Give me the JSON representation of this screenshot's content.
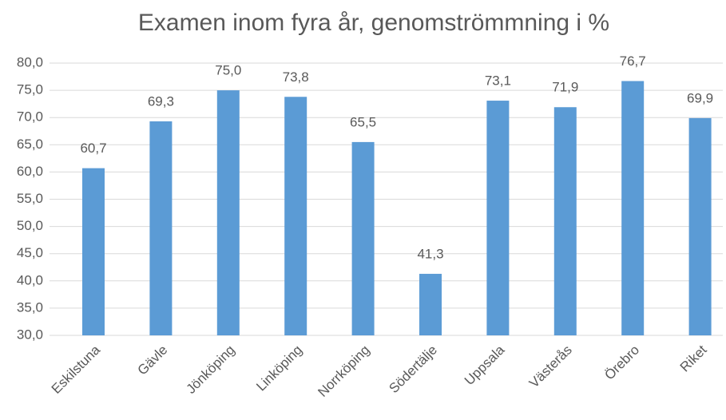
{
  "chart_data": {
    "type": "bar",
    "title": "Examen inom fyra år, genomströmmning i %",
    "categories": [
      "Eskilstuna",
      "Gävle",
      "Jönköping",
      "Linköping",
      "Norrköping",
      "Södertälje",
      "Uppsala",
      "Västerås",
      "Örebro",
      "Riket"
    ],
    "values": [
      60.7,
      69.3,
      75.0,
      73.8,
      65.5,
      41.3,
      73.1,
      71.9,
      76.7,
      69.9
    ],
    "value_labels": [
      "60,7",
      "69,3",
      "75,0",
      "73,8",
      "65,5",
      "41,3",
      "73,1",
      "71,9",
      "76,7",
      "69,9"
    ],
    "color": "#5b9bd5",
    "ylim": [
      30,
      80
    ],
    "yticks": [
      {
        "value": 30,
        "label": "30,0"
      },
      {
        "value": 35,
        "label": "35,0"
      },
      {
        "value": 40,
        "label": "40,0"
      },
      {
        "value": 45,
        "label": "45,0"
      },
      {
        "value": 50,
        "label": "50,0"
      },
      {
        "value": 55,
        "label": "55,0"
      },
      {
        "value": 60,
        "label": "60,0"
      },
      {
        "value": 65,
        "label": "65,0"
      },
      {
        "value": 70,
        "label": "70,0"
      },
      {
        "value": 75,
        "label": "75,0"
      },
      {
        "value": 80,
        "label": "80,0"
      }
    ],
    "grid": true
  }
}
